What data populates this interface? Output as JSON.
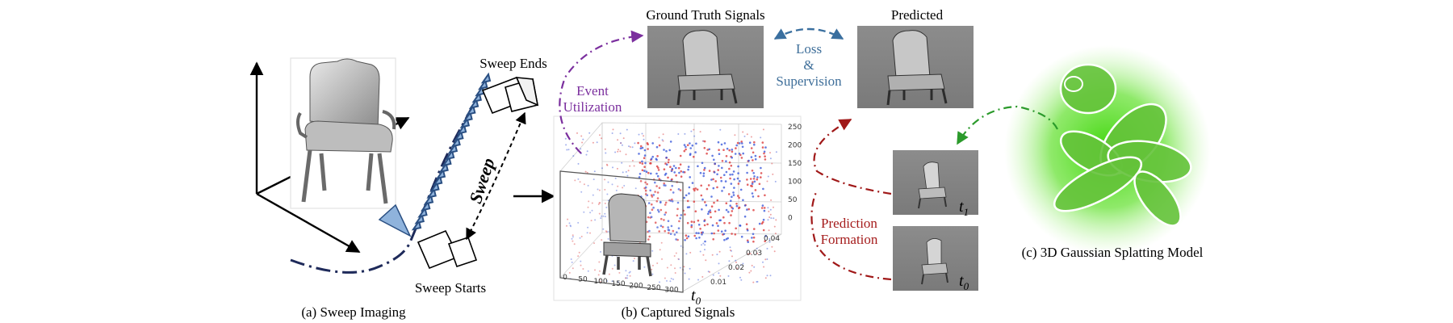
{
  "panel_a": {
    "caption": "(a) Sweep Imaging",
    "sweep_ends": "Sweep Ends",
    "sweep_starts": "Sweep Starts",
    "sweep": "Sweep"
  },
  "panel_b": {
    "caption": "(b) Captured Signals",
    "z_ticks": [
      "250",
      "200",
      "150",
      "100",
      "50",
      "0"
    ],
    "x_ticks": [
      "0",
      "50",
      "100",
      "150",
      "200",
      "250",
      "300"
    ],
    "t_ticks": [
      "0.01",
      "0.02",
      "0.03",
      "0.04"
    ],
    "t0_label": "t",
    "t0_sub": "0"
  },
  "top": {
    "ground_truth": "Ground Truth Signals",
    "predicted": "Predicted",
    "loss_line1": "Loss",
    "loss_line2": "&",
    "loss_line3": "Supervision",
    "event_line1": "Event",
    "event_line2": "Utilization"
  },
  "prediction": {
    "line1": "Prediction",
    "line2": "Formation",
    "t1": "t",
    "t1_sub": "1",
    "t0": "t",
    "t0_sub": "0"
  },
  "panel_c": {
    "caption": "(c) 3D Gaussian Splatting Model"
  },
  "colors": {
    "purple": "#7b2f9e",
    "blue_arrow": "#3a6f9f",
    "red": "#a01818",
    "green": "#2b9a2b",
    "navy": "#1e2a5a",
    "loss_text": "#3f6f9a",
    "event_text": "#7b2f9e",
    "pred_text": "#a51c1c"
  }
}
